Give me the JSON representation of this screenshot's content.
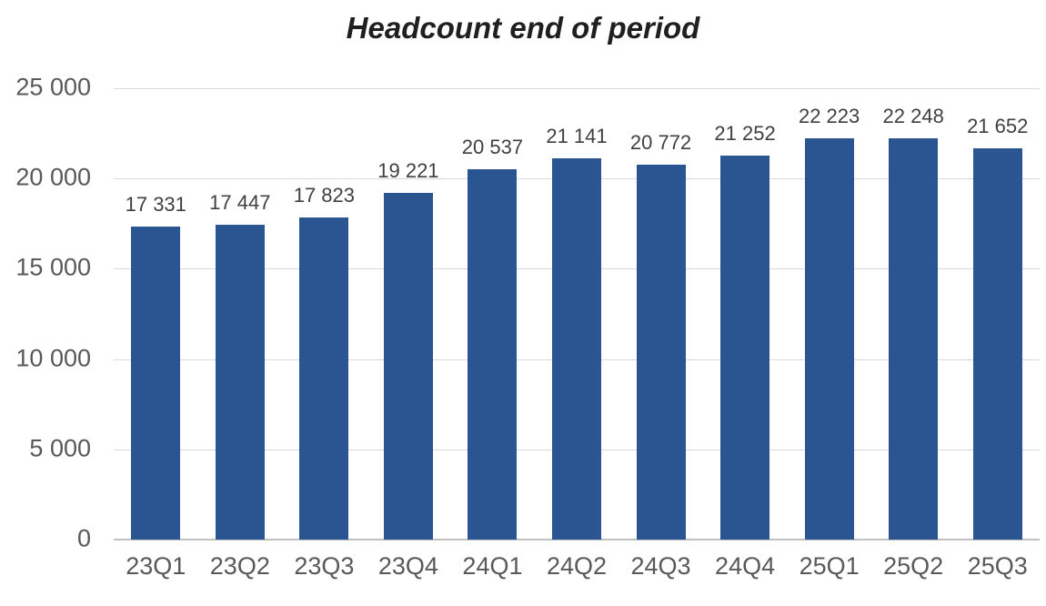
{
  "chart_data": {
    "type": "bar",
    "title": "Headcount end of period",
    "categories": [
      "23Q1",
      "23Q2",
      "23Q3",
      "23Q4",
      "24Q1",
      "24Q2",
      "24Q3",
      "24Q4",
      "25Q1",
      "25Q2",
      "25Q3"
    ],
    "values": [
      17331,
      17447,
      17823,
      19221,
      20537,
      21141,
      20772,
      21252,
      22223,
      22248,
      21652
    ],
    "data_labels": [
      "17 331",
      "17 447",
      "17 823",
      "19 221",
      "20 537",
      "21 141",
      "20 772",
      "21 252",
      "22 223",
      "22 248",
      "21 652"
    ],
    "xlabel": "",
    "ylabel": "",
    "ylim": [
      0,
      25000
    ],
    "yticks": [
      0,
      5000,
      10000,
      15000,
      20000,
      25000
    ],
    "ytick_labels": [
      "0",
      "5 000",
      "10 000",
      "15 000",
      "20 000",
      "25 000"
    ],
    "grid": "horizontal",
    "legend": "none",
    "number_format": "space thousands separator"
  },
  "theme": {
    "bar_color": "#2a5591",
    "gridline_color": "#d8d8d8",
    "baseline_color": "#c0c0c0",
    "axis_label_color": "#595959",
    "data_label_color": "#404040",
    "title_color": "#1f1f1f",
    "background_color": "#ffffff"
  }
}
